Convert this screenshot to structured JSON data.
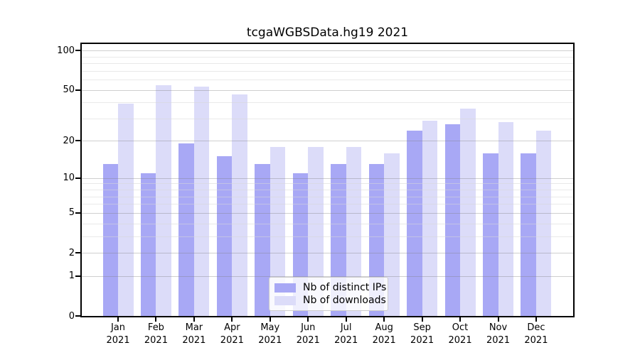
{
  "figure": {
    "background": "#ffffff"
  },
  "chart_data": {
    "type": "bar",
    "title": "tcgaWGBSData.hg19 2021",
    "categories": [
      "Jan",
      "Feb",
      "Mar",
      "Apr",
      "May",
      "Jun",
      "Jul",
      "Aug",
      "Sep",
      "Oct",
      "Nov",
      "Dec"
    ],
    "category_sublabel": "2021",
    "series": [
      {
        "name": "Nb of distinct IPs",
        "color": "#a8a8f5",
        "values": [
          13,
          11,
          19,
          15,
          13,
          11,
          13,
          13,
          24,
          27,
          16,
          16
        ]
      },
      {
        "name": "Nb of downloads",
        "color": "#dcdcf9",
        "values": [
          39,
          54,
          53,
          46,
          18,
          18,
          18,
          16,
          29,
          36,
          28,
          24
        ]
      }
    ],
    "xlabel": "",
    "ylabel": "",
    "yscale": "log1p",
    "yticks": [
      0,
      1,
      2,
      5,
      10,
      20,
      50,
      100
    ],
    "minor_yticks": [
      3,
      4,
      6,
      7,
      8,
      9,
      30,
      40,
      60,
      70,
      80,
      90
    ],
    "ylim": [
      0,
      115
    ],
    "grid": "on",
    "legend_position": "lower center",
    "legend": [
      "Nb of distinct IPs",
      "Nb of downloads"
    ]
  }
}
